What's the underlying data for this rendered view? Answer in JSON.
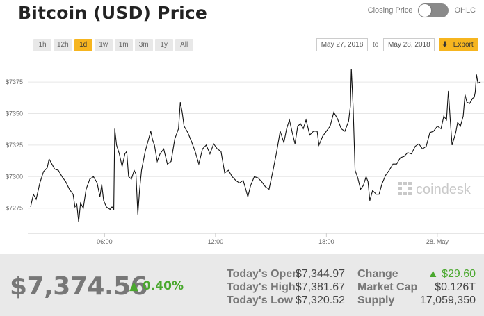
{
  "header": {
    "title": "Bitcoin (USD) Price",
    "toggle_left": "Closing Price",
    "toggle_right": "OHLC"
  },
  "ranges": [
    "1h",
    "12h",
    "1d",
    "1w",
    "1m",
    "3m",
    "1y",
    "All"
  ],
  "active_range": "1d",
  "dates": {
    "from": "May 27, 2018",
    "to_label": "to",
    "to": "May 28, 2018"
  },
  "export_label": "Export",
  "watermark": "coindesk",
  "colors": {
    "accent": "#f6b51f",
    "positive": "#4aa82e",
    "line": "#111111"
  },
  "stats": {
    "price": "$7,374.56",
    "pct_change": "0.40%",
    "today_open_label": "Today's Open",
    "today_open": "$7,344.97",
    "today_high_label": "Today's High",
    "today_high": "$7,381.67",
    "today_low_label": "Today's Low",
    "today_low": "$7,320.52",
    "change_label": "Change",
    "change": "$29.60",
    "market_cap_label": "Market Cap",
    "market_cap": "$0.126T",
    "supply_label": "Supply",
    "supply": "17,059,350"
  },
  "chart_data": {
    "type": "line",
    "title": "",
    "xlabel": "",
    "ylabel": "",
    "x_ticks": [
      "06:00",
      "12:00",
      "18:00",
      "28. May"
    ],
    "y_ticks": [
      "$7275",
      "$7300",
      "$7325",
      "$7350",
      "$7375"
    ],
    "ylim": [
      7255,
      7385
    ],
    "x_unit": "hours since May 27, 2018 02:00",
    "xlim": [
      0,
      24.3
    ],
    "grid": true,
    "legend": "none",
    "series": [
      {
        "values": [
          [
            0.0,
            7276
          ],
          [
            0.15,
            7286
          ],
          [
            0.3,
            7282
          ],
          [
            0.5,
            7295
          ],
          [
            0.7,
            7304
          ],
          [
            0.9,
            7307
          ],
          [
            1.0,
            7314
          ],
          [
            1.15,
            7310
          ],
          [
            1.3,
            7306
          ],
          [
            1.5,
            7305
          ],
          [
            1.7,
            7300
          ],
          [
            1.9,
            7296
          ],
          [
            2.1,
            7290
          ],
          [
            2.3,
            7286
          ],
          [
            2.4,
            7276
          ],
          [
            2.5,
            7278
          ],
          [
            2.6,
            7264
          ],
          [
            2.7,
            7279
          ],
          [
            2.85,
            7275
          ],
          [
            3.0,
            7290
          ],
          [
            3.2,
            7298
          ],
          [
            3.4,
            7300
          ],
          [
            3.6,
            7295
          ],
          [
            3.75,
            7284
          ],
          [
            3.85,
            7294
          ],
          [
            3.95,
            7281
          ],
          [
            4.1,
            7276
          ],
          [
            4.3,
            7274
          ],
          [
            4.4,
            7276
          ],
          [
            4.5,
            7274
          ],
          [
            4.55,
            7338
          ],
          [
            4.65,
            7325
          ],
          [
            4.8,
            7318
          ],
          [
            4.95,
            7308
          ],
          [
            5.1,
            7318
          ],
          [
            5.2,
            7320
          ],
          [
            5.3,
            7300
          ],
          [
            5.45,
            7298
          ],
          [
            5.6,
            7305
          ],
          [
            5.7,
            7302
          ],
          [
            5.8,
            7270
          ],
          [
            5.9,
            7290
          ],
          [
            6.0,
            7305
          ],
          [
            6.2,
            7320
          ],
          [
            6.35,
            7328
          ],
          [
            6.5,
            7336
          ],
          [
            6.6,
            7329
          ],
          [
            6.7,
            7325
          ],
          [
            6.85,
            7312
          ],
          [
            7.0,
            7318
          ],
          [
            7.2,
            7322
          ],
          [
            7.4,
            7310
          ],
          [
            7.6,
            7312
          ],
          [
            7.8,
            7330
          ],
          [
            8.0,
            7338
          ],
          [
            8.1,
            7359
          ],
          [
            8.2,
            7351
          ],
          [
            8.3,
            7340
          ],
          [
            8.5,
            7335
          ],
          [
            8.7,
            7328
          ],
          [
            8.9,
            7320
          ],
          [
            9.1,
            7310
          ],
          [
            9.3,
            7322
          ],
          [
            9.5,
            7325
          ],
          [
            9.7,
            7318
          ],
          [
            9.9,
            7326
          ],
          [
            10.1,
            7322
          ],
          [
            10.3,
            7320
          ],
          [
            10.5,
            7303
          ],
          [
            10.7,
            7305
          ],
          [
            10.9,
            7300
          ],
          [
            11.1,
            7297
          ],
          [
            11.3,
            7295
          ],
          [
            11.5,
            7297
          ],
          [
            11.6,
            7292
          ],
          [
            11.75,
            7284
          ],
          [
            11.9,
            7293
          ],
          [
            12.1,
            7300
          ],
          [
            12.3,
            7299
          ],
          [
            12.5,
            7296
          ],
          [
            12.7,
            7292
          ],
          [
            12.9,
            7290
          ],
          [
            13.1,
            7304
          ],
          [
            13.3,
            7319
          ],
          [
            13.5,
            7336
          ],
          [
            13.7,
            7327
          ],
          [
            13.85,
            7338
          ],
          [
            14.0,
            7345
          ],
          [
            14.15,
            7335
          ],
          [
            14.3,
            7326
          ],
          [
            14.45,
            7340
          ],
          [
            14.6,
            7342
          ],
          [
            14.75,
            7338
          ],
          [
            14.9,
            7345
          ],
          [
            15.1,
            7333
          ],
          [
            15.3,
            7336
          ],
          [
            15.5,
            7336
          ],
          [
            15.6,
            7325
          ],
          [
            15.8,
            7332
          ],
          [
            16.0,
            7336
          ],
          [
            16.2,
            7340
          ],
          [
            16.4,
            7351
          ],
          [
            16.6,
            7346
          ],
          [
            16.8,
            7338
          ],
          [
            17.0,
            7336
          ],
          [
            17.2,
            7344
          ],
          [
            17.3,
            7356
          ],
          [
            17.35,
            7386
          ],
          [
            17.45,
            7354
          ],
          [
            17.55,
            7305
          ],
          [
            17.7,
            7299
          ],
          [
            17.85,
            7290
          ],
          [
            18.0,
            7293
          ],
          [
            18.15,
            7300
          ],
          [
            18.25,
            7296
          ],
          [
            18.35,
            7281
          ],
          [
            18.5,
            7289
          ],
          [
            18.7,
            7286
          ],
          [
            18.85,
            7286
          ],
          [
            19.0,
            7294
          ],
          [
            19.2,
            7301
          ],
          [
            19.4,
            7305
          ],
          [
            19.6,
            7310
          ],
          [
            19.8,
            7310
          ],
          [
            20.0,
            7315
          ],
          [
            20.2,
            7316
          ],
          [
            20.4,
            7319
          ],
          [
            20.6,
            7318
          ],
          [
            20.8,
            7324
          ],
          [
            21.0,
            7326
          ],
          [
            21.2,
            7322
          ],
          [
            21.4,
            7324
          ],
          [
            21.6,
            7335
          ],
          [
            21.8,
            7336
          ],
          [
            22.0,
            7340
          ],
          [
            22.2,
            7338
          ],
          [
            22.35,
            7348
          ],
          [
            22.5,
            7345
          ],
          [
            22.6,
            7368
          ],
          [
            22.7,
            7345
          ],
          [
            22.8,
            7325
          ],
          [
            22.9,
            7330
          ],
          [
            23.0,
            7335
          ],
          [
            23.1,
            7343
          ],
          [
            23.25,
            7340
          ],
          [
            23.4,
            7348
          ],
          [
            23.5,
            7365
          ],
          [
            23.6,
            7359
          ],
          [
            23.75,
            7358
          ],
          [
            23.9,
            7362
          ],
          [
            24.0,
            7363
          ],
          [
            24.05,
            7367
          ],
          [
            24.12,
            7381
          ],
          [
            24.2,
            7374
          ],
          [
            24.3,
            7375
          ]
        ]
      }
    ]
  }
}
